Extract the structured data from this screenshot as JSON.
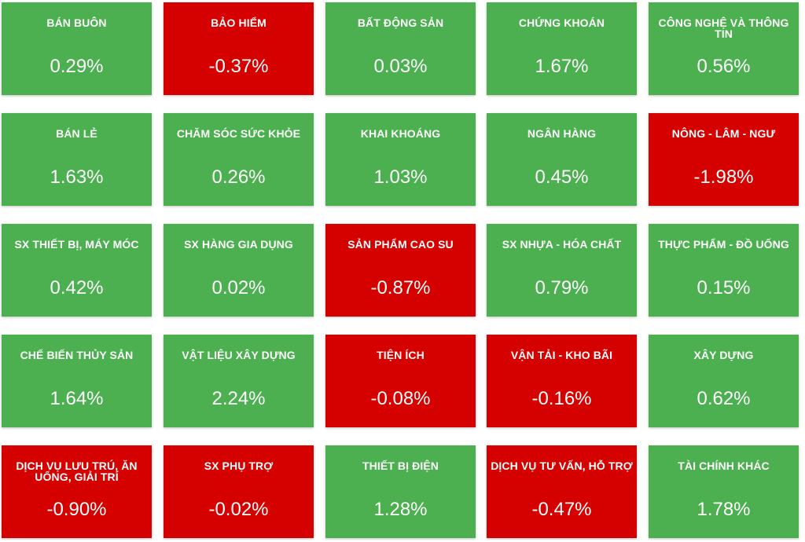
{
  "colors": {
    "positive": "#4caf50",
    "negative": "#d50000",
    "text": "#ffffff"
  },
  "sectors": [
    {
      "name": "BÁN BUÔN",
      "change": "0.29%",
      "trend": "up"
    },
    {
      "name": "BẢO HIỂM",
      "change": "-0.37%",
      "trend": "down"
    },
    {
      "name": "BẤT ĐỘNG SẢN",
      "change": "0.03%",
      "trend": "up"
    },
    {
      "name": "CHỨNG KHOÁN",
      "change": "1.67%",
      "trend": "up"
    },
    {
      "name": "CÔNG NGHỆ VÀ THÔNG TIN",
      "change": "0.56%",
      "trend": "up"
    },
    {
      "name": "BÁN LẺ",
      "change": "1.63%",
      "trend": "up"
    },
    {
      "name": "CHĂM SÓC SỨC KHỎE",
      "change": "0.26%",
      "trend": "up"
    },
    {
      "name": "KHAI KHOÁNG",
      "change": "1.03%",
      "trend": "up"
    },
    {
      "name": "NGÂN HÀNG",
      "change": "0.45%",
      "trend": "up"
    },
    {
      "name": "NÔNG - LÂM - NGƯ",
      "change": "-1.98%",
      "trend": "down"
    },
    {
      "name": "SX THIẾT BỊ, MÁY MÓC",
      "change": "0.42%",
      "trend": "up"
    },
    {
      "name": "SX HÀNG GIA DỤNG",
      "change": "0.02%",
      "trend": "up"
    },
    {
      "name": "SẢN PHẨM CAO SU",
      "change": "-0.87%",
      "trend": "down"
    },
    {
      "name": "SX NHỰA - HÓA CHẤT",
      "change": "0.79%",
      "trend": "up"
    },
    {
      "name": "THỰC PHẨM - ĐỒ UỐNG",
      "change": "0.15%",
      "trend": "up"
    },
    {
      "name": "CHẾ BIẾN THỦY SẢN",
      "change": "1.64%",
      "trend": "up"
    },
    {
      "name": "VẬT LIỆU XÂY DỰNG",
      "change": "2.24%",
      "trend": "up"
    },
    {
      "name": "TIỆN ÍCH",
      "change": "-0.08%",
      "trend": "down"
    },
    {
      "name": "VẬN TẢI - KHO BÃI",
      "change": "-0.16%",
      "trend": "down"
    },
    {
      "name": "XÂY DỰNG",
      "change": "0.62%",
      "trend": "up"
    },
    {
      "name": "DỊCH VỤ LƯU TRÚ, ĂN UỐNG, GIẢI TRÍ",
      "change": "-0.90%",
      "trend": "down"
    },
    {
      "name": "SX PHỤ TRỢ",
      "change": "-0.02%",
      "trend": "down"
    },
    {
      "name": "THIẾT BỊ ĐIỆN",
      "change": "1.28%",
      "trend": "up"
    },
    {
      "name": "DỊCH VỤ TƯ VẤN, HỖ TRỢ",
      "change": "-0.47%",
      "trend": "down"
    },
    {
      "name": "TÀI CHÍNH KHÁC",
      "change": "1.78%",
      "trend": "up"
    }
  ]
}
